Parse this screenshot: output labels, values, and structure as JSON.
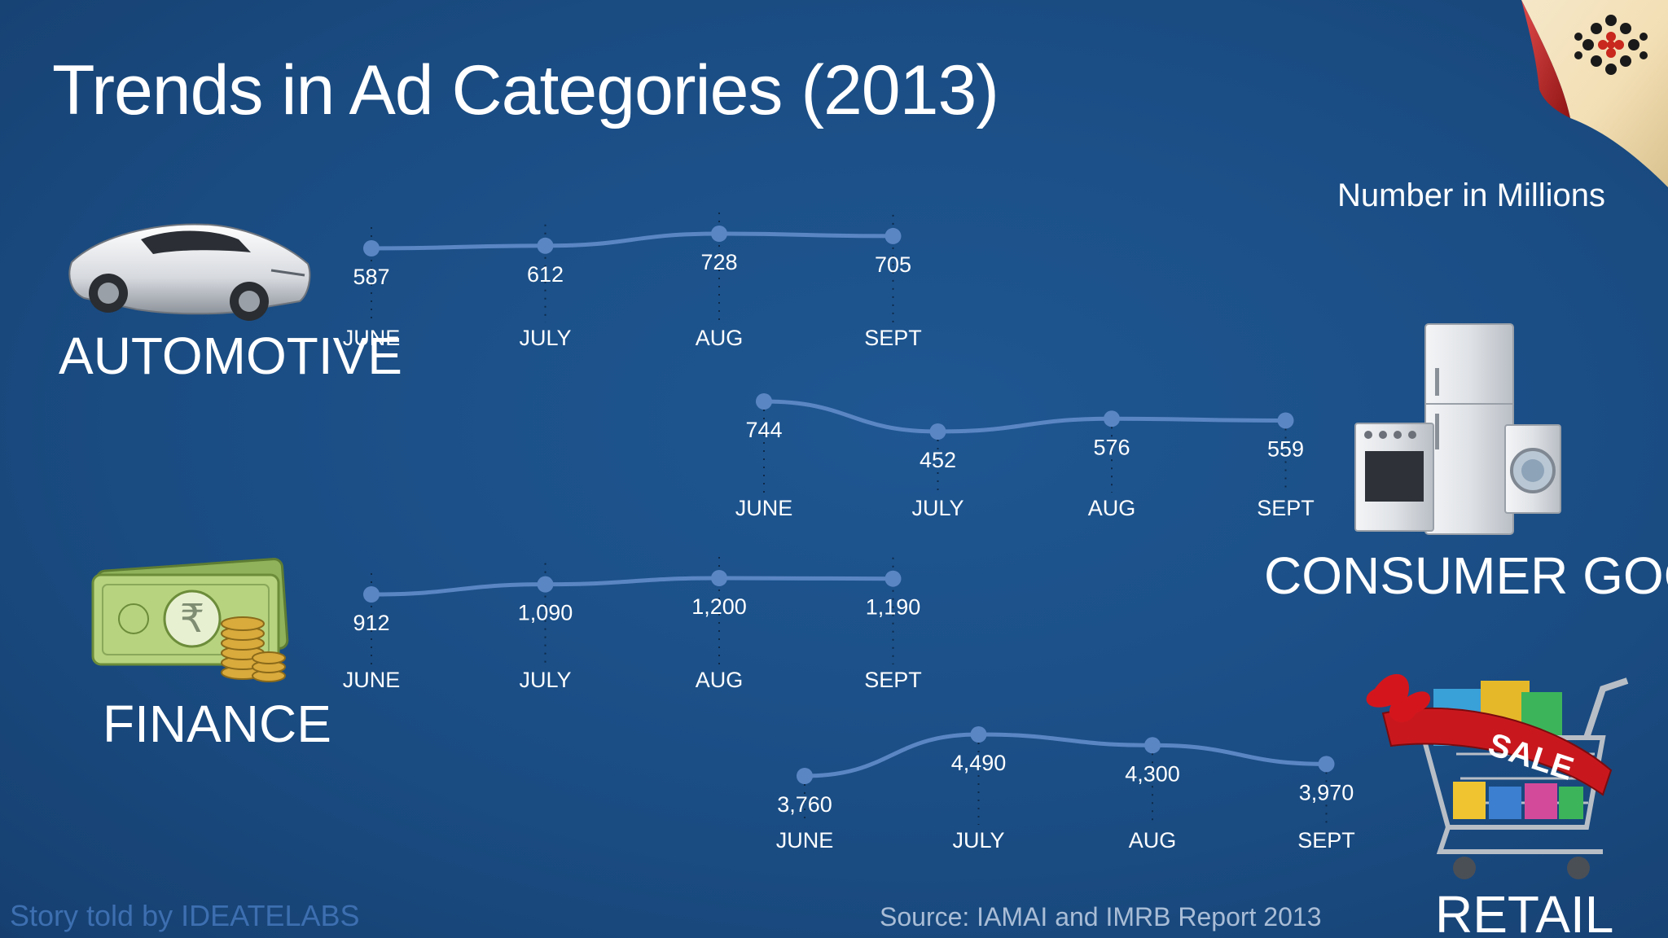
{
  "title": "Trends in Ad Categories (2013)",
  "units_note": "Number in Millions",
  "footer": {
    "credit": "Story told by IDEATELABS",
    "source": "Source: IAMAI and IMRB Report 2013"
  },
  "colors": {
    "background": "#1a4c82",
    "line": "#5b86c4",
    "text": "#ffffff"
  },
  "icons": [
    "sports-car-icon",
    "appliances-icon",
    "rupee-money-icon",
    "sale-cart-icon",
    "logo-dots-icon"
  ],
  "chart_data": [
    {
      "type": "line",
      "name": "AUTOMOTIVE",
      "categories": [
        "JUNE",
        "JULY",
        "AUG",
        "SEPT"
      ],
      "values": [
        587,
        612,
        728,
        705
      ],
      "value_labels": [
        "587",
        "612",
        "728",
        "705"
      ]
    },
    {
      "type": "line",
      "name": "CONSUMER GOODS",
      "categories": [
        "JUNE",
        "JULY",
        "AUG",
        "SEPT"
      ],
      "values": [
        744,
        452,
        576,
        559
      ],
      "value_labels": [
        "744",
        "452",
        "576",
        "559"
      ]
    },
    {
      "type": "line",
      "name": "FINANCE",
      "categories": [
        "JUNE",
        "JULY",
        "AUG",
        "SEPT"
      ],
      "values": [
        912,
        1090,
        1200,
        1190
      ],
      "value_labels": [
        "912",
        "1,090",
        "1,200",
        "1,190"
      ]
    },
    {
      "type": "line",
      "name": "RETAIL",
      "categories": [
        "JUNE",
        "JULY",
        "AUG",
        "SEPT"
      ],
      "values": [
        3760,
        4490,
        4300,
        3970
      ],
      "value_labels": [
        "3,760",
        "4,490",
        "4,300",
        "3,970"
      ]
    }
  ]
}
